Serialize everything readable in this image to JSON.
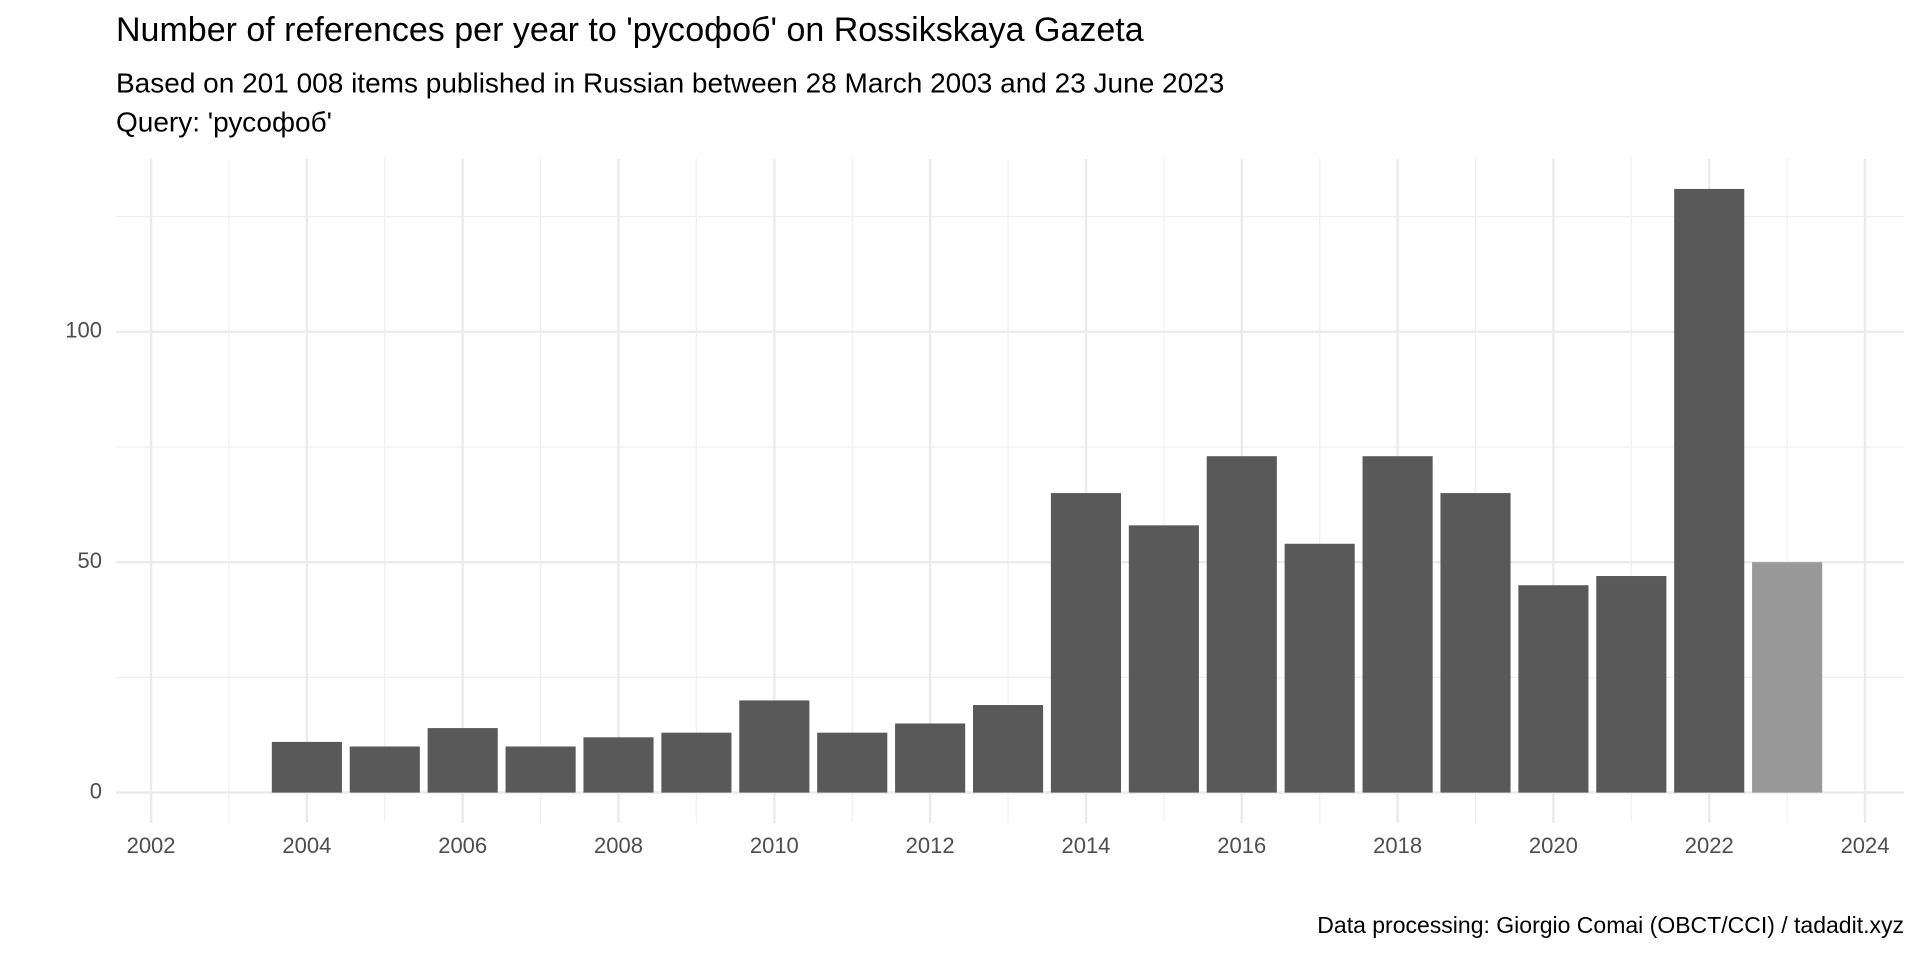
{
  "chart_data": {
    "type": "bar",
    "title": "Number of references per year to 'русофоб' on Rossikskaya Gazeta",
    "subtitle": "Based on 201 008 items published in Russian between 28 March 2003 and 23 June 2023",
    "query": "Query: 'русофоб'",
    "caption": "Data processing: Giorgio Comai (OBCT/CCI) / tadadit.xyz",
    "x": [
      2004,
      2005,
      2006,
      2007,
      2008,
      2009,
      2010,
      2011,
      2012,
      2013,
      2014,
      2015,
      2016,
      2017,
      2018,
      2019,
      2020,
      2021,
      2022,
      2023
    ],
    "values": [
      11,
      10,
      14,
      10,
      12,
      13,
      20,
      13,
      15,
      19,
      65,
      58,
      73,
      54,
      73,
      65,
      45,
      47,
      131,
      50
    ],
    "colors": [
      "#595959",
      "#595959",
      "#595959",
      "#595959",
      "#595959",
      "#595959",
      "#595959",
      "#595959",
      "#595959",
      "#595959",
      "#595959",
      "#595959",
      "#595959",
      "#595959",
      "#595959",
      "#595959",
      "#595959",
      "#595959",
      "#595959",
      "#999999"
    ],
    "xlim": [
      2001.55,
      2024.5
    ],
    "ylim": [
      -6.6,
      137.5
    ],
    "xticks": [
      2002,
      2004,
      2006,
      2008,
      2010,
      2012,
      2014,
      2016,
      2018,
      2020,
      2022,
      2024
    ],
    "yticks": [
      0,
      50,
      100
    ],
    "grid": true
  }
}
